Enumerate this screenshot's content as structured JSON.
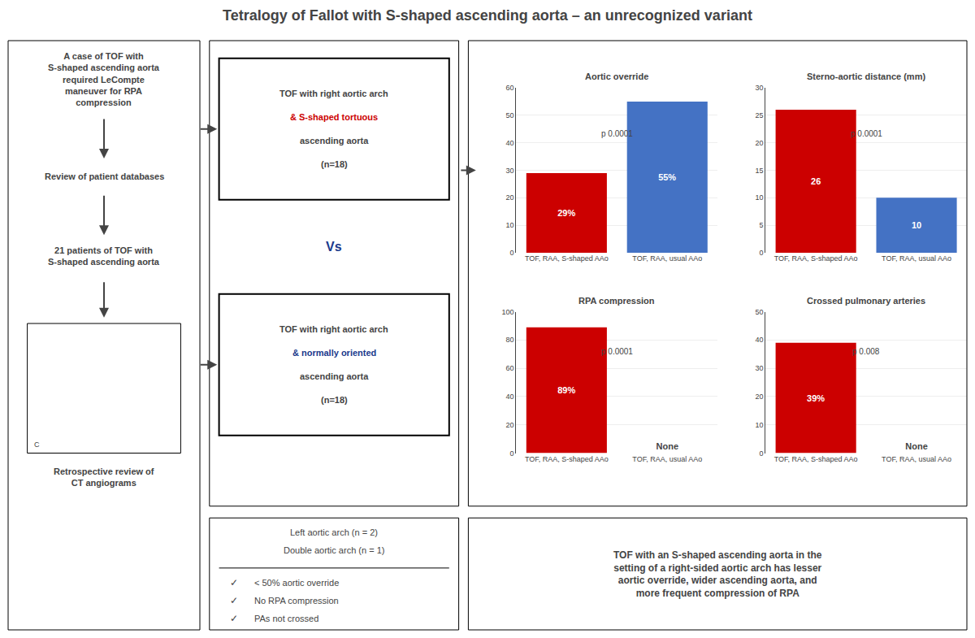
{
  "title": "Tetralogy of Fallot with S-shaped ascending aorta – an unrecognized variant",
  "annotations": [
    {
      "text": "A case of TOF with\nS-shaped ascending aorta\nrequired LeCompte\nmaneuver for RPA\ncompression"
    },
    {
      "text": "Review of patient databases"
    },
    {
      "text": "21 patients of TOF with\nS-shaped ascending aorta"
    },
    {
      "text": "C"
    },
    {
      "text": "Retrospective review of\nCT angiograms"
    },
    {
      "text": "TOF with right aortic arch"
    },
    {
      "text": "& S-shaped tortuous",
      "color": "#cc0000"
    },
    {
      "text": "ascending aorta"
    },
    {
      "text": "(n=18)"
    },
    {
      "text": "Vs",
      "color": "#1a3a8c"
    },
    {
      "text": "TOF with right aortic arch"
    },
    {
      "text": "& normally oriented",
      "color": "#1a3a8c"
    },
    {
      "text": "ascending aorta"
    },
    {
      "text": "(n=18)"
    },
    {
      "text": "Left aortic arch (n = 2)"
    },
    {
      "text": "Double aortic arch (n = 1)"
    },
    {
      "text": "✓"
    },
    {
      "text": "< 50% aortic override"
    },
    {
      "text": "✓"
    },
    {
      "text": "No RPA compression"
    },
    {
      "text": "✓"
    },
    {
      "text": "PAs not crossed"
    },
    {
      "text": "TOF with an S-shaped ascending aorta in the\nsetting of a right-sided aortic arch has lesser\naortic override, wider ascending aorta, and\nmore frequent compression of RPA"
    }
  ],
  "chart_data": [
    {
      "type": "bar",
      "title": "Aortic override",
      "categories": [
        "TOF, RAA, S-shaped AAo",
        "TOF, RAA, usual AAo"
      ],
      "values": [
        29,
        55
      ],
      "value_labels": [
        "29%",
        "55%"
      ],
      "data_labels": true,
      "colors": [
        "#cc0000",
        "#4472c4"
      ],
      "ylim": [
        0,
        60
      ],
      "yticks": [
        0,
        10,
        20,
        30,
        40,
        50,
        60
      ],
      "grid": true,
      "annotations": [
        "p 0.0001"
      ]
    },
    {
      "type": "bar",
      "title": "Sterno-aortic distance (mm)",
      "categories": [
        "TOF, RAA, S-shaped AAo",
        "TOF, RAA, usual AAo"
      ],
      "values": [
        26,
        10
      ],
      "value_labels": [
        "26",
        "10"
      ],
      "data_labels": true,
      "colors": [
        "#cc0000",
        "#4472c4"
      ],
      "ylim": [
        0,
        30
      ],
      "yticks": [
        0,
        5,
        10,
        15,
        20,
        25,
        30
      ],
      "grid": true,
      "annotations": [
        "p 0.0001"
      ]
    },
    {
      "type": "bar",
      "title": "RPA compression",
      "categories": [
        "TOF, RAA, S-shaped AAo",
        "TOF, RAA, usual AAo"
      ],
      "values": [
        89,
        0
      ],
      "value_labels": [
        "89%",
        "None"
      ],
      "data_labels": true,
      "colors": [
        "#cc0000",
        "#4472c4"
      ],
      "ylim": [
        0,
        100
      ],
      "yticks": [
        0,
        20,
        40,
        60,
        80,
        100
      ],
      "grid": true,
      "annotations": [
        "p 0.0001"
      ]
    },
    {
      "type": "bar",
      "title": "Crossed pulmonary arteries",
      "categories": [
        "TOF, RAA, S-shaped AAo",
        "TOF, RAA, usual AAo"
      ],
      "values": [
        39,
        0
      ],
      "value_labels": [
        "39%",
        "None"
      ],
      "data_labels": true,
      "colors": [
        "#cc0000",
        "#4472c4"
      ],
      "ylim": [
        0,
        50
      ],
      "yticks": [
        0,
        10,
        20,
        30,
        40,
        50
      ],
      "grid": true,
      "annotations": [
        "p 0.008"
      ]
    }
  ]
}
